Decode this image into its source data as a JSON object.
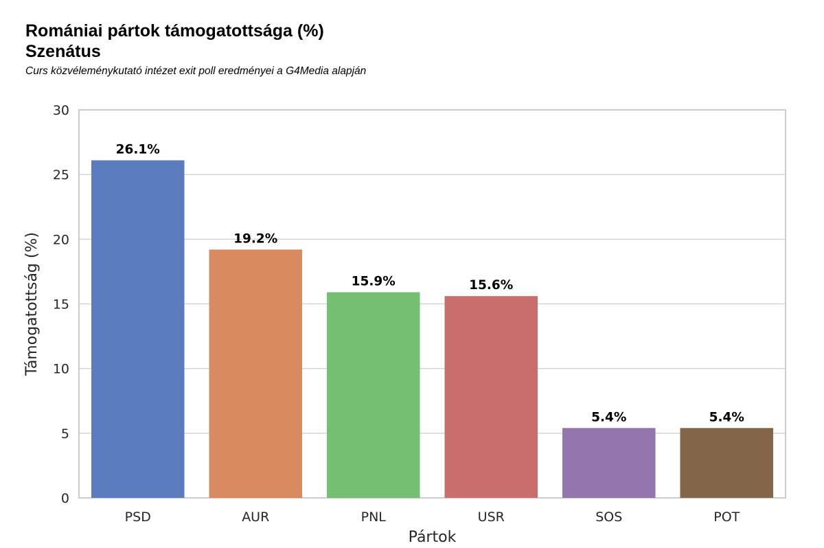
{
  "header": {
    "title_line1": "Romániai pártok támogatottsága (%)",
    "title_line2": "Szenátus",
    "subtitle": "Curs közvéleménykutató intézet exit poll eredményei a G4Media alapján"
  },
  "chart_data": {
    "type": "bar",
    "title": "Romániai pártok támogatottsága (%) Szenátus",
    "subtitle": "Curs közvéleménykutató intézet exit poll eredményei a G4Media alapján",
    "xlabel": "Pártok",
    "ylabel": "Támogatottság (%)",
    "categories": [
      "PSD",
      "AUR",
      "PNL",
      "USR",
      "SOS",
      "POT"
    ],
    "values": [
      26.1,
      19.2,
      15.9,
      15.6,
      5.4,
      5.4
    ],
    "value_labels": [
      "26.1%",
      "19.2%",
      "15.9%",
      "15.6%",
      "5.4%",
      "5.4%"
    ],
    "colors": [
      "#5b7dbf",
      "#d98a5f",
      "#74bf72",
      "#c96d6d",
      "#9475ad",
      "#83654a"
    ],
    "ylim": [
      0,
      30
    ],
    "yticks": [
      0,
      5,
      10,
      15,
      20,
      25,
      30
    ],
    "grid": "horizontal",
    "legend": "none"
  }
}
